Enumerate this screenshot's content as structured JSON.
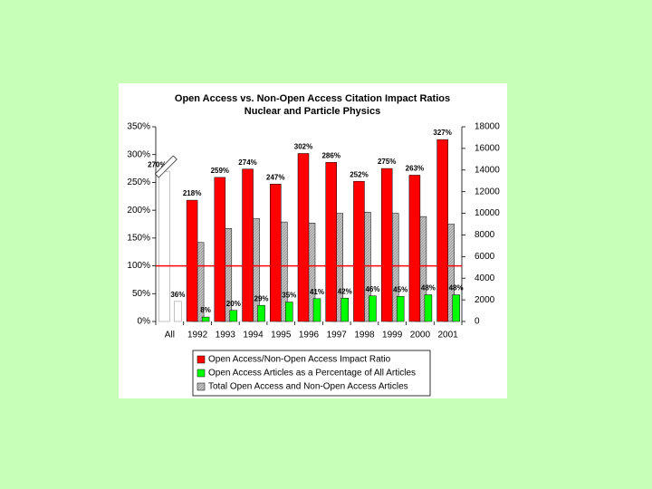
{
  "chart_data": {
    "type": "bar",
    "title": "Open Access vs. Non-Open Access Citation Impact Ratios",
    "subtitle": "Nuclear and Particle Physics",
    "categories": [
      "All",
      "1992",
      "1993",
      "1994",
      "1995",
      "1996",
      "1997",
      "1998",
      "1999",
      "2000",
      "2001"
    ],
    "series": [
      {
        "name": "Open Access/Non-Open Access Impact Ratio",
        "color": "#ff0000",
        "values": [
          270,
          218,
          259,
          274,
          247,
          302,
          286,
          252,
          275,
          263,
          327
        ],
        "value_labels": [
          "270%",
          "218%",
          "259%",
          "274%",
          "247%",
          "302%",
          "286%",
          "252%",
          "275%",
          "263%",
          "327%"
        ]
      },
      {
        "name": "Open Access Articles as a Percentage of All Articles",
        "color": "#00ff00",
        "values": [
          36,
          8,
          20,
          29,
          35,
          41,
          42,
          46,
          45,
          48,
          48
        ],
        "value_labels": [
          "36%",
          "8%",
          "20%",
          "29%",
          "35%",
          "41%",
          "42%",
          "46%",
          "45%",
          "48%",
          "48%"
        ]
      },
      {
        "name": "Total Open Access and Non-Open Access Articles",
        "color": "#c0c0c0",
        "axis": "y2",
        "values": [
          null,
          7300,
          8600,
          9500,
          9200,
          9100,
          10000,
          10100,
          10000,
          9700,
          9000
        ]
      }
    ],
    "reference_y": 100,
    "reference_color": "#ff0000",
    "ylim": [
      0,
      350
    ],
    "yticks": [
      {
        "value": 0,
        "label": "0%"
      },
      {
        "value": 50,
        "label": "50%"
      },
      {
        "value": 100,
        "label": "100%"
      },
      {
        "value": 150,
        "label": "150%"
      },
      {
        "value": 200,
        "label": "200%"
      },
      {
        "value": 250,
        "label": "250%"
      },
      {
        "value": 300,
        "label": "300%"
      },
      {
        "value": 350,
        "label": "350%"
      }
    ],
    "y2lim": [
      0,
      18000
    ],
    "y2ticks": [
      0,
      2000,
      4000,
      6000,
      8000,
      10000,
      12000,
      14000,
      16000,
      18000
    ],
    "legend": "bottom"
  }
}
